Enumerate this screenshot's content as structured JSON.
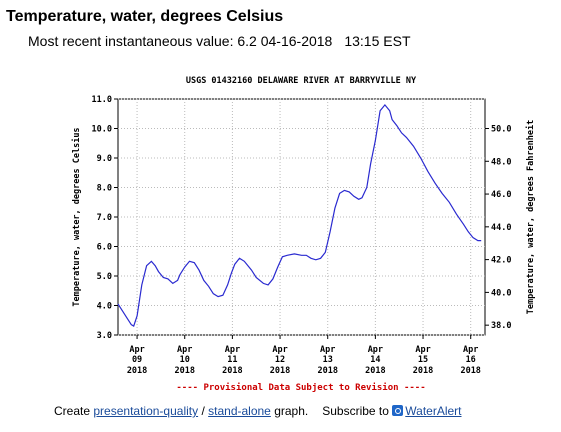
{
  "heading": "Temperature, water, degrees Celsius",
  "recent": {
    "label": "Most recent instantaneous value:",
    "value": "6.2",
    "date": "04-16-2018",
    "time": "13:15 EST"
  },
  "footer": {
    "create": "Create",
    "link_presentation": "presentation-quality",
    "slash": "/",
    "link_standalone": "stand-alone",
    "graph": "graph.",
    "subscribe": "Subscribe to",
    "link_wateralert": "WaterAlert"
  },
  "colors": {
    "line": "#2a2ad0",
    "provisional": "#cc0000",
    "grid": "#bbbbbb",
    "link": "#1a4b9a"
  },
  "chart_data": {
    "type": "line",
    "title": "USGS 01432160 DELAWARE RIVER AT BARRYVILLE NY",
    "ylabel": "Temperature, water, degrees Celsius",
    "y2label": "Temperature, water, degrees Fahrenheit",
    "note": "---- Provisional Data Subject to Revision ----",
    "xlim": [
      8.6,
      16.3
    ],
    "ylim": [
      3.0,
      11.0
    ],
    "y2lim": [
      37.4,
      51.8
    ],
    "grid": true,
    "yticks": [
      "3.0",
      "4.0",
      "5.0",
      "6.0",
      "7.0",
      "8.0",
      "9.0",
      "10.0",
      "11.0"
    ],
    "y2ticks": [
      "38.0",
      "40.0",
      "42.0",
      "44.0",
      "46.0",
      "48.0",
      "50.0"
    ],
    "xticks": [
      {
        "x": 9,
        "mon": "Apr",
        "day": "09",
        "year": "2018"
      },
      {
        "x": 10,
        "mon": "Apr",
        "day": "10",
        "year": "2018"
      },
      {
        "x": 11,
        "mon": "Apr",
        "day": "11",
        "year": "2018"
      },
      {
        "x": 12,
        "mon": "Apr",
        "day": "12",
        "year": "2018"
      },
      {
        "x": 13,
        "mon": "Apr",
        "day": "13",
        "year": "2018"
      },
      {
        "x": 14,
        "mon": "Apr",
        "day": "14",
        "year": "2018"
      },
      {
        "x": 15,
        "mon": "Apr",
        "day": "15",
        "year": "2018"
      },
      {
        "x": 16,
        "mon": "Apr",
        "day": "16",
        "year": "2018"
      }
    ],
    "series": [
      {
        "x": [
          8.6,
          8.7,
          8.8,
          8.88,
          8.93,
          9.0,
          9.1,
          9.2,
          9.3,
          9.38,
          9.45,
          9.55,
          9.65,
          9.75,
          9.85,
          9.9,
          10.0,
          10.1,
          10.2,
          10.3,
          10.4,
          10.5,
          10.6,
          10.7,
          10.8,
          10.9,
          10.98,
          11.05,
          11.15,
          11.25,
          11.4,
          11.5,
          11.65,
          11.75,
          11.85,
          11.95,
          12.05,
          12.15,
          12.3,
          12.45,
          12.55,
          12.65,
          12.75,
          12.85,
          12.95,
          13.05,
          13.15,
          13.25,
          13.35,
          13.45,
          13.55,
          13.65,
          13.72,
          13.82,
          13.9,
          14.0,
          14.1,
          14.2,
          14.3,
          14.35,
          14.45,
          14.55,
          14.65,
          14.8,
          14.95,
          15.1,
          15.25,
          15.4,
          15.55,
          15.7,
          15.85,
          15.95,
          16.05,
          16.15,
          16.22
        ],
        "y": [
          4.05,
          3.8,
          3.55,
          3.35,
          3.3,
          3.65,
          4.7,
          5.35,
          5.5,
          5.35,
          5.15,
          4.95,
          4.9,
          4.75,
          4.85,
          5.05,
          5.3,
          5.5,
          5.45,
          5.2,
          4.85,
          4.65,
          4.4,
          4.3,
          4.35,
          4.7,
          5.1,
          5.4,
          5.6,
          5.5,
          5.2,
          4.95,
          4.75,
          4.7,
          4.9,
          5.3,
          5.65,
          5.7,
          5.75,
          5.7,
          5.7,
          5.6,
          5.55,
          5.6,
          5.8,
          6.5,
          7.3,
          7.8,
          7.9,
          7.85,
          7.7,
          7.6,
          7.65,
          8.0,
          8.8,
          9.6,
          10.6,
          10.8,
          10.6,
          10.3,
          10.1,
          9.85,
          9.7,
          9.4,
          9.0,
          8.55,
          8.15,
          7.8,
          7.5,
          7.1,
          6.75,
          6.5,
          6.3,
          6.2,
          6.2
        ]
      }
    ]
  }
}
